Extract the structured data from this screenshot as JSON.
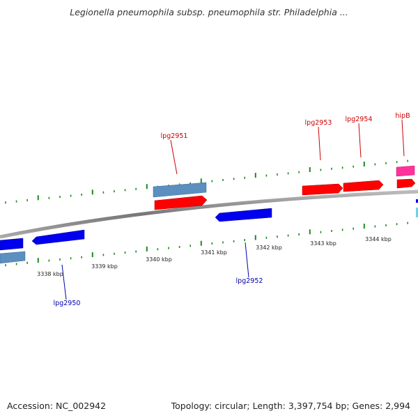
{
  "title": "Legionella pneumophila subsp. pneumophila str. Philadelphia ...",
  "footer": {
    "accession": "Accession: NC_002942",
    "summary": "Topology: circular; Length: 3,397,754 bp; Genes: 2,994"
  },
  "colors": {
    "forward_gene": "#ff0000",
    "reverse_gene": "#0000ee",
    "forward_label": "#cc0000",
    "reverse_label": "#0000aa",
    "pseudo_gene": "#5b8fbf",
    "highlight_gene": "#ff3399",
    "tick": "#1a8a1a",
    "backbone": "#888888"
  },
  "scale_labels": [
    "3338 kbp",
    "3339 kbp",
    "3340 kbp",
    "3341 kbp",
    "3342 kbp",
    "3343 kbp",
    "3344 kbp"
  ],
  "gene_labels": [
    {
      "text": "lpg2951",
      "strand": "forward"
    },
    {
      "text": "lpg2953",
      "strand": "forward"
    },
    {
      "text": "lpg2954",
      "strand": "forward"
    },
    {
      "text": "hipB",
      "strand": "forward"
    },
    {
      "text": "lpg2950",
      "strand": "reverse"
    },
    {
      "text": "lpg2952",
      "strand": "reverse"
    }
  ]
}
